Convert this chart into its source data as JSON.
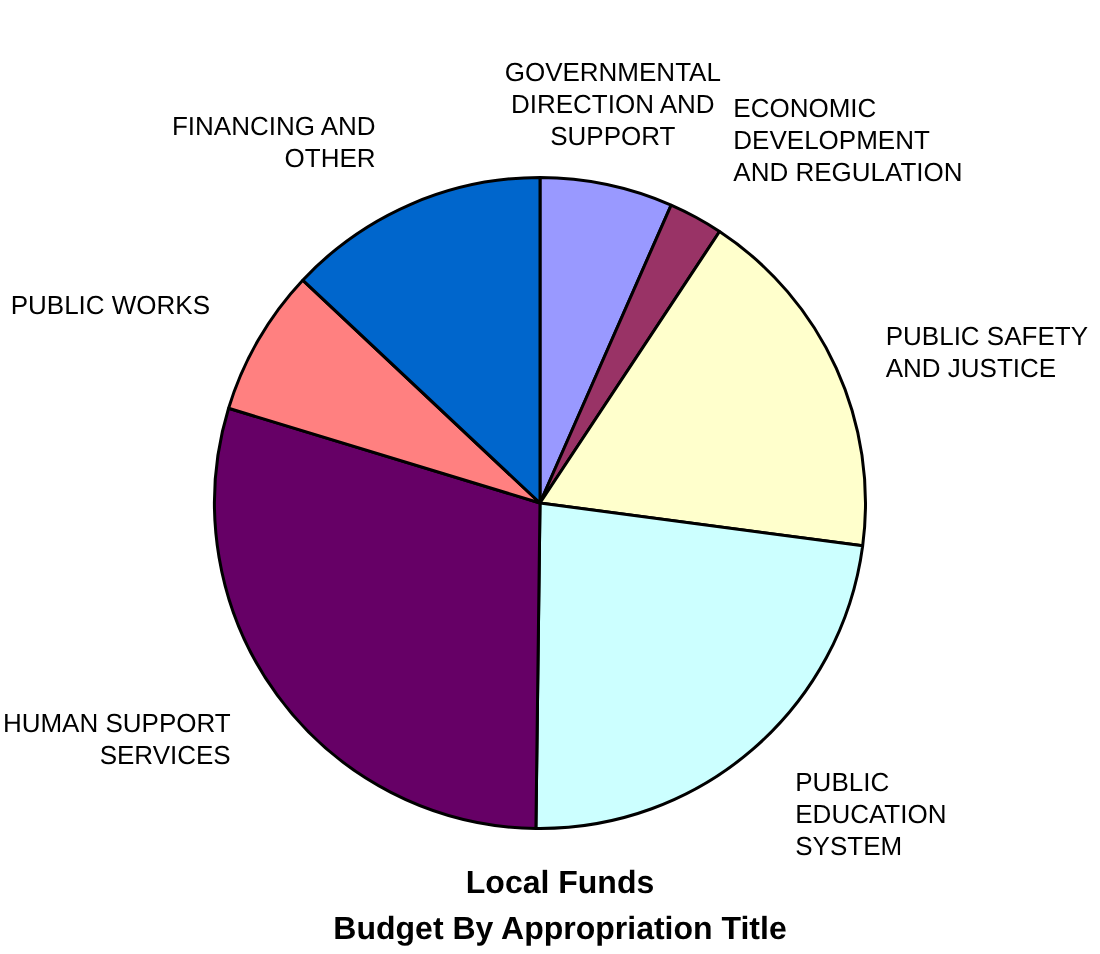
{
  "chart_data": {
    "type": "pie",
    "title": "Local Funds",
    "subtitle": "Budget By Appropriation Title",
    "categories": [
      "GOVERNMENTAL DIRECTION AND SUPPORT",
      "ECONOMIC DEVELOPMENT AND REGULATION",
      "PUBLIC SAFETY AND JUSTICE",
      "PUBLIC EDUCATION SYSTEM",
      "HUMAN SUPPORT SERVICES",
      "PUBLIC WORKS",
      "FINANCING AND OTHER"
    ],
    "values": [
      6.6,
      2.7,
      17.8,
      23.1,
      29.5,
      7.3,
      13.0
    ],
    "colors": [
      "#9999ff",
      "#993366",
      "#ffffcc",
      "#ccffff",
      "#660066",
      "#ff8080",
      "#0066cc"
    ],
    "legend": false
  }
}
